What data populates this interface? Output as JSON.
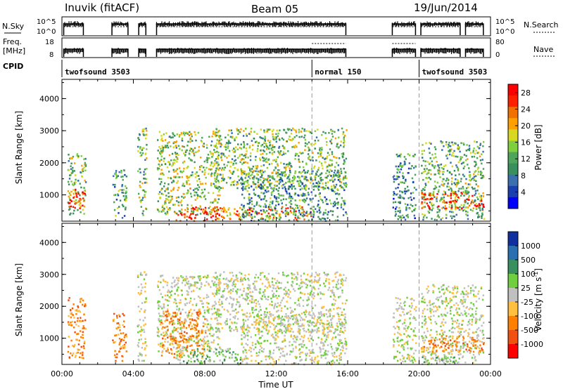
{
  "header": {
    "station": "Inuvik (fitACF)",
    "beam": "Beam 05",
    "date": "19/Jun/2014"
  },
  "summary_panels": {
    "nsky_label": "N.Sky",
    "nsky_ticks": [
      "10^5",
      "10^0"
    ],
    "nsearch_label": "N.Search",
    "nsearch_ticks": [
      "10^5",
      "10^0"
    ],
    "freq_label_line1": "Freq.",
    "freq_label_line2": "[MHz]",
    "freq_ticks": [
      "18",
      "8"
    ],
    "nave_label": "Nave",
    "nave_ticks": [
      "80",
      "0"
    ],
    "cpid_label": "CPID",
    "cpid_segments": [
      {
        "label": "twofsound 3503",
        "start_hr": 0.0,
        "end_hr": 14.0
      },
      {
        "label": "normal 150",
        "start_hr": 14.0,
        "end_hr": 20.0
      },
      {
        "label": "twofsound 3503",
        "start_hr": 20.0,
        "end_hr": 24.0
      }
    ],
    "data_blocks_hr": [
      [
        0.1,
        1.2
      ],
      [
        2.8,
        3.7
      ],
      [
        4.3,
        4.7
      ],
      [
        5.3,
        15.9
      ],
      [
        18.5,
        19.8
      ],
      [
        20.1,
        22.3
      ],
      [
        22.6,
        23.6
      ]
    ]
  },
  "chart_data": [
    {
      "type": "heatmap",
      "title": "Power",
      "ylabel": "Slant Range [km]",
      "xlabel": "",
      "xlim": [
        0,
        24
      ],
      "ylim": [
        180,
        4600
      ],
      "yticks": [
        "1000",
        "2000",
        "3000",
        "4000"
      ],
      "colorbar_label": "Power [dB]",
      "colorbar_ticks": [
        "28",
        "24",
        "20",
        "16",
        "12",
        "8",
        "4"
      ],
      "colorbar_range": [
        0,
        30
      ],
      "colors": [
        "#0000ff",
        "#1a3fb0",
        "#3a6fb0",
        "#3a8f5f",
        "#4fa55a",
        "#7fcf3f",
        "#d8d820",
        "#ffa000",
        "#f07000",
        "#ff2000",
        "#ff0000"
      ],
      "regions": [
        {
          "t": [
            0.3,
            1.3
          ],
          "r": [
            400,
            2300
          ],
          "level": 14
        },
        {
          "t": [
            0.3,
            1.3
          ],
          "r": [
            600,
            1200
          ],
          "level": 27
        },
        {
          "t": [
            2.8,
            3.6
          ],
          "r": [
            300,
            1800
          ],
          "level": 11
        },
        {
          "t": [
            4.2,
            4.7
          ],
          "r": [
            300,
            3100
          ],
          "level": 13
        },
        {
          "t": [
            5.3,
            8.8
          ],
          "r": [
            400,
            3000
          ],
          "level": 15
        },
        {
          "t": [
            6.3,
            8.8
          ],
          "r": [
            200,
            650
          ],
          "level": 29
        },
        {
          "t": [
            8.5,
            14.0
          ],
          "r": [
            250,
            650
          ],
          "level": 22
        },
        {
          "t": [
            8.5,
            15.9
          ],
          "r": [
            1200,
            3100
          ],
          "level": 14
        },
        {
          "t": [
            10.0,
            15.9
          ],
          "r": [
            200,
            1800
          ],
          "level": 10
        },
        {
          "t": [
            18.5,
            19.8
          ],
          "r": [
            250,
            2300
          ],
          "level": 9
        },
        {
          "t": [
            20.1,
            23.6
          ],
          "r": [
            250,
            2700
          ],
          "level": 13
        },
        {
          "t": [
            20.1,
            23.6
          ],
          "r": [
            600,
            1100
          ],
          "level": 26
        }
      ]
    },
    {
      "type": "heatmap",
      "title": "Velocity",
      "ylabel": "Slant Range [km]",
      "xlabel": "Time UT",
      "xlim": [
        0,
        24
      ],
      "ylim": [
        180,
        4600
      ],
      "xticks": [
        "00:00",
        "04:00",
        "08:00",
        "12:00",
        "16:00",
        "20:00",
        "00:00"
      ],
      "yticks": [
        "1000",
        "2000",
        "3000",
        "4000"
      ],
      "colorbar_label": "Velocity [m s^-1]",
      "colorbar_ticks": [
        "1000",
        "500",
        "100",
        "25",
        "-25",
        "-100",
        "-500",
        "-1000"
      ],
      "colors": [
        "#1030a0",
        "#2a6fb0",
        "#3a8f5f",
        "#6fcf3f",
        "#c0c0c0",
        "#ffc040",
        "#ff8000",
        "#f05010",
        "#ff0000"
      ],
      "regions": [
        {
          "t": [
            0.3,
            1.3
          ],
          "r": [
            400,
            2300
          ],
          "vcat": 6
        },
        {
          "t": [
            2.8,
            3.6
          ],
          "r": [
            300,
            1800
          ],
          "vcat": 6
        },
        {
          "t": [
            4.2,
            4.7
          ],
          "r": [
            300,
            3100
          ],
          "vcat": 4
        },
        {
          "t": [
            5.3,
            8.8
          ],
          "r": [
            600,
            3000
          ],
          "vcat": 4
        },
        {
          "t": [
            5.5,
            8.0
          ],
          "r": [
            400,
            1900
          ],
          "vcat": 6
        },
        {
          "t": [
            6.3,
            10.0
          ],
          "r": [
            200,
            700
          ],
          "vcat": 3
        },
        {
          "t": [
            8.5,
            15.9
          ],
          "r": [
            1200,
            3100
          ],
          "vcat": 4
        },
        {
          "t": [
            10.0,
            15.9
          ],
          "r": [
            200,
            1800
          ],
          "vcat": 4
        },
        {
          "t": [
            18.5,
            19.8
          ],
          "r": [
            250,
            2300
          ],
          "vcat": 4
        },
        {
          "t": [
            20.1,
            23.6
          ],
          "r": [
            250,
            2700
          ],
          "vcat": 4
        },
        {
          "t": [
            20.1,
            23.6
          ],
          "r": [
            600,
            1100
          ],
          "vcat": 6
        },
        {
          "t": [
            20.1,
            22.0
          ],
          "r": [
            200,
            450
          ],
          "vcat": 3
        }
      ]
    }
  ]
}
